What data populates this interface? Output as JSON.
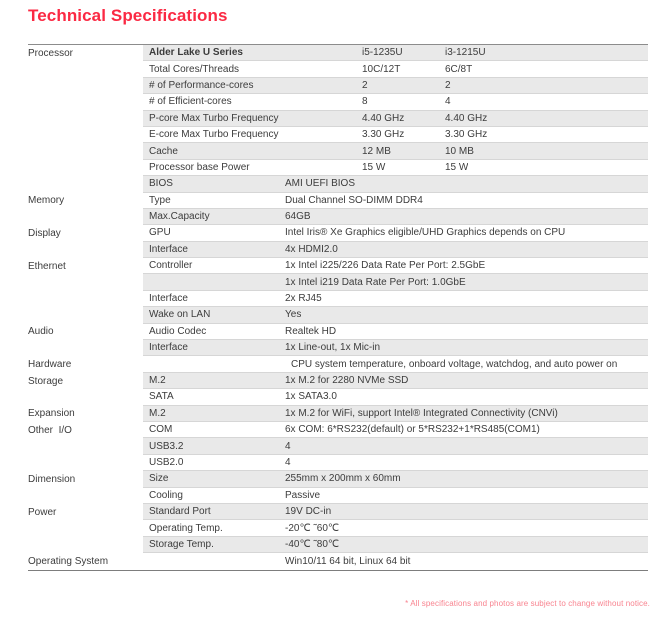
{
  "page": {
    "title": "Technical Specifications",
    "footnote": "* All specifications and photos are subject to change without notice."
  },
  "colors": {
    "title_red": "#fb2943",
    "footnote_pink": "#f8838f",
    "row_shade_gray": "#e9e9e9",
    "text_gray": "#3c3c3c"
  },
  "table": {
    "rows": [
      {
        "category": "Processor",
        "key": "Alder Lake U Series",
        "bold": true,
        "type": "proc",
        "values": [
          "i5-1235U",
          "i3-1215U"
        ],
        "shade": true
      },
      {
        "category": "",
        "key": "Total Cores/Threads",
        "type": "proc",
        "values": [
          "10C/12T",
          "6C/8T"
        ],
        "shade": false
      },
      {
        "category": "",
        "key": "# of Performance-cores",
        "type": "proc",
        "values": [
          "2",
          "2"
        ],
        "shade": true
      },
      {
        "category": "",
        "key": "# of Efficient-cores",
        "type": "proc",
        "values": [
          "8",
          "4"
        ],
        "shade": false
      },
      {
        "category": "",
        "key": "P-core Max Turbo Frequency",
        "type": "proc",
        "values": [
          "4.40 GHz",
          "4.40 GHz"
        ],
        "shade": true
      },
      {
        "category": "",
        "key": "E-core Max Turbo Frequency",
        "type": "proc",
        "values": [
          "3.30 GHz",
          "3.30 GHz"
        ],
        "shade": false
      },
      {
        "category": "",
        "key": "Cache",
        "type": "proc",
        "values": [
          "12 MB",
          "10 MB"
        ],
        "shade": true
      },
      {
        "category": "",
        "key": "Processor base Power",
        "type": "proc",
        "values": [
          "15 W",
          "15 W"
        ],
        "shade": false
      },
      {
        "category": "",
        "key": "BIOS",
        "type": "kv",
        "value": "AMI UEFI BIOS",
        "shade": true
      },
      {
        "category": "Memory",
        "key": "Type",
        "type": "kv",
        "value": "Dual Channel SO-DIMM DDR4",
        "shade": false
      },
      {
        "category": "",
        "key": "Max.Capacity",
        "type": "kv",
        "value": "64GB",
        "shade": true
      },
      {
        "category": "Display",
        "key": "GPU",
        "type": "kv",
        "value": "Intel Iris® Xe Graphics eligible/UHD Graphics depends on CPU",
        "shade": false
      },
      {
        "category": "",
        "key": "Interface",
        "type": "kv",
        "value": "4x HDMI2.0",
        "shade": true
      },
      {
        "category": "Ethernet",
        "key": "Controller",
        "type": "kv",
        "value": "1x Intel i225/226 Data Rate Per Port: 2.5GbE",
        "shade": false
      },
      {
        "category": "",
        "key": "",
        "type": "kv",
        "value": "1x Intel i219 Data Rate Per Port: 1.0GbE",
        "shade": true
      },
      {
        "category": "",
        "key": "Interface",
        "type": "kv",
        "value": "2x RJ45",
        "shade": false
      },
      {
        "category": "",
        "key": "Wake on LAN",
        "type": "kv",
        "value": "Yes",
        "shade": true
      },
      {
        "category": "Audio",
        "key": "Audio Codec",
        "type": "kv",
        "value": "Realtek HD",
        "shade": false
      },
      {
        "category": "",
        "key": "Interface",
        "type": "kv",
        "value": "1x Line-out, 1x Mic-in",
        "shade": true
      },
      {
        "category": "Hardware",
        "key": "",
        "type": "kv",
        "value": "CPU system temperature, onboard voltage, watchdog, and auto power on",
        "indent": true,
        "shade": false
      },
      {
        "category": "Storage",
        "key": "M.2",
        "type": "kv",
        "value": "1x M.2 for 2280 NVMe SSD",
        "shade": true
      },
      {
        "category": "",
        "key": "SATA",
        "type": "kv",
        "value": "1x SATA3.0",
        "shade": false
      },
      {
        "category": "Expansion",
        "key": "M.2",
        "type": "kv",
        "value": "1x M.2 for WiFi, support Intel® Integrated Connectivity (CNVi)",
        "shade": true
      },
      {
        "category": "Other  I/O",
        "key": "COM",
        "type": "kv",
        "value": "6x COM: 6*RS232(default) or 5*RS232+1*RS485(COM1)",
        "shade": false
      },
      {
        "category": "",
        "key": "USB3.2",
        "type": "kv",
        "value": "4",
        "shade": true
      },
      {
        "category": "",
        "key": "USB2.0",
        "type": "kv",
        "value": "4",
        "shade": false
      },
      {
        "category": "Dimension",
        "key": "Size",
        "type": "kv",
        "value": "255mm x 200mm x 60mm",
        "shade": true
      },
      {
        "category": "",
        "key": "Cooling",
        "type": "kv",
        "value": "Passive",
        "shade": false
      },
      {
        "category": "Power",
        "key": "Standard Port",
        "type": "kv",
        "value": "19V DC-in",
        "shade": true
      },
      {
        "category": "",
        "key": "Operating Temp.",
        "type": "kv",
        "value": "-20℃ ˜60℃",
        "shade": false
      },
      {
        "category": "",
        "key": "Storage Temp.",
        "type": "kv",
        "value": "-40℃ ˜80℃",
        "shade": true
      },
      {
        "category": "Operating System",
        "key": "",
        "type": "kv",
        "value": "Win10/11 64 bit, Linux 64 bit",
        "shade": false
      }
    ]
  }
}
